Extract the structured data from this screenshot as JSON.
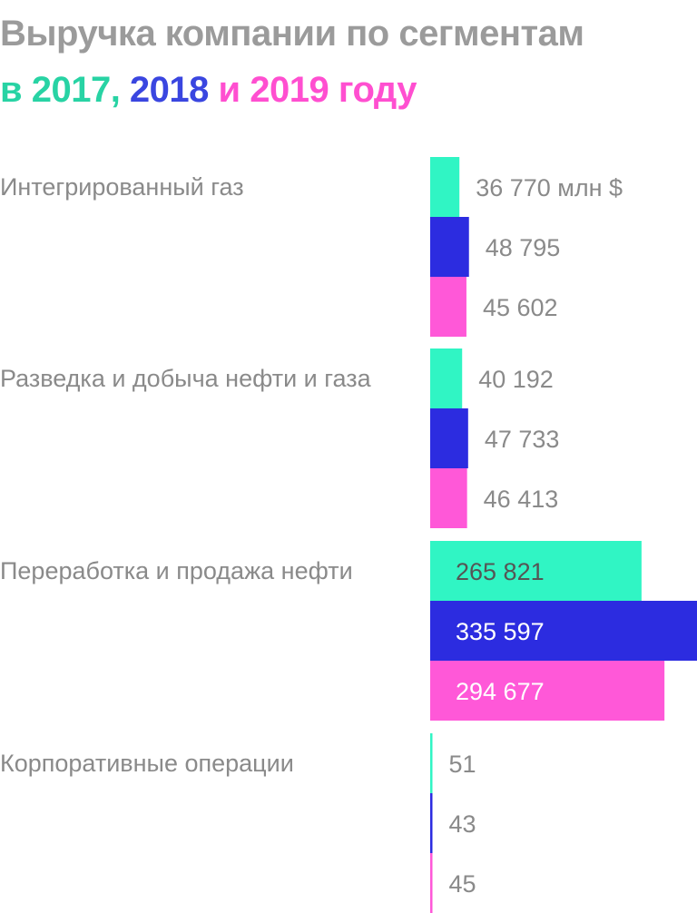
{
  "title": {
    "line1": "Выручка компании по сегментам",
    "line2_prefix": "в ",
    "year1": "2017",
    "sep1": ", ",
    "year2": "2018",
    "sep2": " и ",
    "year3": "2019",
    "suffix": " году"
  },
  "colors": {
    "title_gray": "#9b9b9b",
    "label_gray": "#8a8a8a",
    "year_2017_text": "#28d3a4",
    "year_2018_text": "#3a46e0",
    "year_2019_text": "#ff4fd0"
  },
  "chart_data": {
    "type": "bar",
    "orientation": "horizontal",
    "unit": "млн $",
    "categories": [
      "Интегрированный газ",
      "Разведка и добыча нефти и газа",
      "Переработка и продажа нефти",
      "Корпоративные операции"
    ],
    "series": [
      {
        "name": "2017",
        "color": "#30f5c4",
        "values": [
          36770,
          40192,
          265821,
          51
        ],
        "labels": [
          "36 770 млн $",
          "40 192",
          "265 821",
          "51"
        ]
      },
      {
        "name": "2018",
        "color": "#2c2ce0",
        "values": [
          48795,
          47733,
          335597,
          43
        ],
        "labels": [
          "48 795",
          "47 733",
          "335 597",
          "43"
        ]
      },
      {
        "name": "2019",
        "color": "#ff58d8",
        "values": [
          45602,
          46413,
          294677,
          45
        ],
        "labels": [
          "45 602",
          "46 413",
          "294 677",
          "45"
        ]
      }
    ],
    "xlim": [
      0,
      335597
    ],
    "grid": false,
    "legend": "title"
  }
}
